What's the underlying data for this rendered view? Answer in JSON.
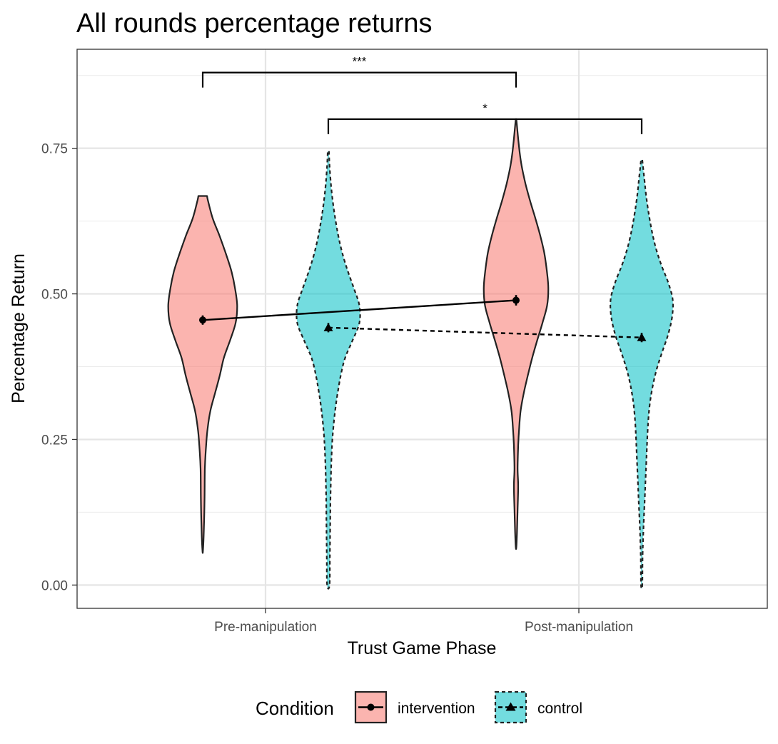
{
  "chart_data": {
    "type": "violin",
    "title": "All rounds percentage returns",
    "xlabel": "Trust Game Phase",
    "ylabel": "Percentage Return",
    "categories": [
      "Pre-manipulation",
      "Post-manipulation"
    ],
    "ylim": [
      -0.04,
      0.92
    ],
    "yticks": [
      0.0,
      0.25,
      0.5,
      0.75
    ],
    "ytick_labels": [
      "0.00",
      "0.25",
      "0.50",
      "0.75"
    ],
    "grid": true,
    "legend": {
      "title": "Condition",
      "position": "bottom"
    },
    "series": [
      {
        "name": "intervention",
        "color": "#f8766d",
        "linestyle": "solid",
        "marker": "circle",
        "means": [
          0.455,
          0.489
        ],
        "errors": [
          0.008,
          0.009
        ],
        "violins": [
          {
            "category": "Pre-manipulation",
            "profile": [
              [
                0.668,
                0.014
              ],
              [
                0.66,
                0.017
              ],
              [
                0.63,
                0.032
              ],
              [
                0.6,
                0.054
              ],
              [
                0.57,
                0.074
              ],
              [
                0.54,
                0.092
              ],
              [
                0.51,
                0.104
              ],
              [
                0.48,
                0.111
              ],
              [
                0.45,
                0.106
              ],
              [
                0.42,
                0.088
              ],
              [
                0.39,
                0.068
              ],
              [
                0.36,
                0.055
              ],
              [
                0.33,
                0.04
              ],
              [
                0.3,
                0.025
              ],
              [
                0.27,
                0.016
              ],
              [
                0.24,
                0.011
              ],
              [
                0.2,
                0.007
              ],
              [
                0.15,
                0.006
              ],
              [
                0.1,
                0.004
              ],
              [
                0.06,
                0.001
              ]
            ]
          },
          {
            "category": "Post-manipulation",
            "profile": [
              [
                0.8,
                0.001
              ],
              [
                0.75,
                0.01
              ],
              [
                0.72,
                0.018
              ],
              [
                0.69,
                0.03
              ],
              [
                0.66,
                0.045
              ],
              [
                0.63,
                0.062
              ],
              [
                0.6,
                0.078
              ],
              [
                0.57,
                0.091
              ],
              [
                0.54,
                0.099
              ],
              [
                0.51,
                0.104
              ],
              [
                0.48,
                0.1
              ],
              [
                0.45,
                0.085
              ],
              [
                0.42,
                0.068
              ],
              [
                0.39,
                0.052
              ],
              [
                0.36,
                0.038
              ],
              [
                0.33,
                0.025
              ],
              [
                0.3,
                0.015
              ],
              [
                0.27,
                0.01
              ],
              [
                0.24,
                0.007
              ],
              [
                0.2,
                0.005
              ],
              [
                0.17,
                0.007
              ],
              [
                0.13,
                0.005
              ],
              [
                0.09,
                0.003
              ],
              [
                0.065,
                0.001
              ]
            ]
          }
        ]
      },
      {
        "name": "control",
        "color": "#00bfc4",
        "linestyle": "dashed",
        "marker": "triangle",
        "means": [
          0.442,
          0.425
        ],
        "errors": [
          0.008,
          0.008
        ],
        "violins": [
          {
            "category": "Pre-manipulation",
            "profile": [
              [
                0.745,
                0.002
              ],
              [
                0.72,
                0.004
              ],
              [
                0.69,
                0.008
              ],
              [
                0.66,
                0.014
              ],
              [
                0.63,
                0.022
              ],
              [
                0.6,
                0.032
              ],
              [
                0.57,
                0.045
              ],
              [
                0.54,
                0.062
              ],
              [
                0.51,
                0.082
              ],
              [
                0.48,
                0.1
              ],
              [
                0.45,
                0.1
              ],
              [
                0.42,
                0.078
              ],
              [
                0.39,
                0.054
              ],
              [
                0.36,
                0.04
              ],
              [
                0.33,
                0.03
              ],
              [
                0.3,
                0.022
              ],
              [
                0.27,
                0.016
              ],
              [
                0.24,
                0.012
              ],
              [
                0.2,
                0.009
              ],
              [
                0.15,
                0.007
              ],
              [
                0.1,
                0.006
              ],
              [
                0.05,
                0.005
              ],
              [
                0.0,
                0.004
              ]
            ]
          },
          {
            "category": "Post-manipulation",
            "profile": [
              [
                0.73,
                0.002
              ],
              [
                0.7,
                0.008
              ],
              [
                0.67,
                0.014
              ],
              [
                0.64,
                0.022
              ],
              [
                0.61,
                0.032
              ],
              [
                0.58,
                0.045
              ],
              [
                0.55,
                0.063
              ],
              [
                0.52,
                0.085
              ],
              [
                0.49,
                0.1
              ],
              [
                0.46,
                0.098
              ],
              [
                0.43,
                0.085
              ],
              [
                0.4,
                0.066
              ],
              [
                0.37,
                0.048
              ],
              [
                0.34,
                0.035
              ],
              [
                0.31,
                0.026
              ],
              [
                0.28,
                0.021
              ],
              [
                0.25,
                0.018
              ],
              [
                0.2,
                0.014
              ],
              [
                0.15,
                0.01
              ],
              [
                0.1,
                0.006
              ],
              [
                0.05,
                0.003
              ],
              [
                0.0,
                0.002
              ]
            ]
          }
        ]
      }
    ],
    "significance": [
      {
        "from": [
          "Pre-manipulation",
          "intervention"
        ],
        "to": [
          "Post-manipulation",
          "intervention"
        ],
        "y": 0.88,
        "label": "***"
      },
      {
        "from": [
          "Pre-manipulation",
          "control"
        ],
        "to": [
          "Post-manipulation",
          "control"
        ],
        "y": 0.8,
        "label": "*"
      }
    ]
  }
}
